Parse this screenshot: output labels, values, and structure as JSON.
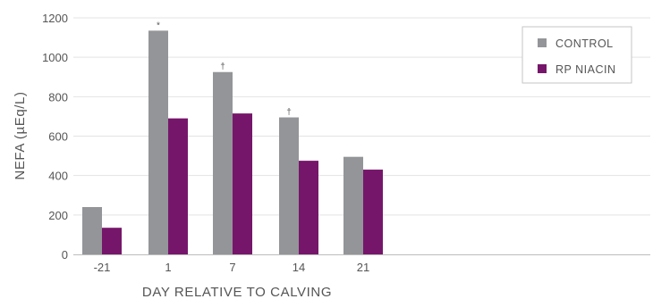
{
  "chart_data": {
    "type": "bar",
    "categories": [
      "-21",
      "1",
      "7",
      "14",
      "21"
    ],
    "series": [
      {
        "name": "CONTROL",
        "values": [
          240,
          1135,
          925,
          695,
          495
        ],
        "color": "#939598"
      },
      {
        "name": "RP NIACIN",
        "values": [
          135,
          690,
          715,
          475,
          430
        ],
        "color": "#76166a"
      }
    ],
    "annotations": [
      "",
      "*",
      "†",
      "†",
      ""
    ],
    "xlabel": "DAY RELATIVE TO CALVING",
    "ylabel": "NEFA (µEq/L)",
    "ylim": [
      0,
      1200
    ],
    "yticks": [
      "0",
      "200",
      "400",
      "600",
      "800",
      "1000",
      "1200"
    ],
    "grid": true,
    "legend_position": "top-right"
  }
}
